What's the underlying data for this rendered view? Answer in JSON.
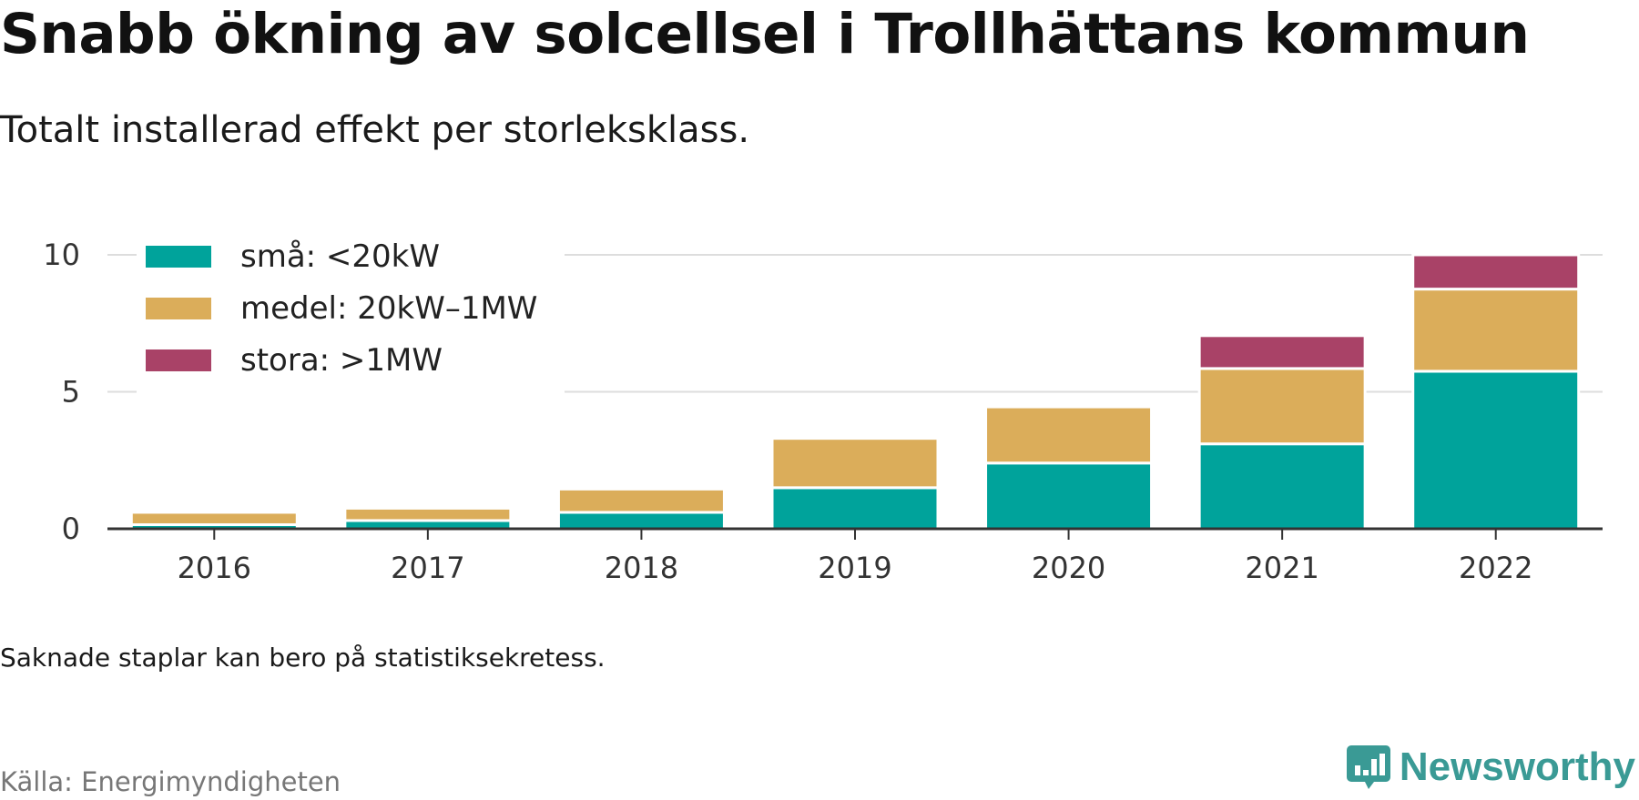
{
  "title": "Snabb ökning av solcellsel i Trollhättans kommun",
  "subtitle": "Totalt installerad effekt per storleksklass.",
  "note": "Saknade staplar kan bero på statistiksekretess.",
  "source": "Källa: Energimyndigheten",
  "brand": {
    "name": "Newsworthy",
    "logo_icon": "bar-chart-speech-bubble-icon",
    "color": "#3a9a95"
  },
  "chart_data": {
    "type": "bar",
    "stacked": true,
    "categories": [
      "2016",
      "2017",
      "2018",
      "2019",
      "2020",
      "2021",
      "2022"
    ],
    "series": [
      {
        "name": "små: <20kW",
        "color": "#00a39b",
        "values": [
          0.15,
          0.3,
          0.6,
          1.5,
          2.4,
          3.1,
          5.75
        ]
      },
      {
        "name": "medel: 20kW–1MW",
        "color": "#dbad5a",
        "values": [
          0.45,
          0.45,
          0.85,
          1.8,
          2.05,
          2.75,
          3.0
        ]
      },
      {
        "name": "stora: >1MW",
        "color": "#a94267",
        "values": [
          0,
          0,
          0,
          0,
          0,
          1.2,
          1.25
        ]
      }
    ],
    "ylim": [
      0,
      10.5
    ],
    "yticks": [
      0,
      5,
      10
    ],
    "ytick_labels": [
      "0",
      "5",
      "10"
    ],
    "grid": true,
    "legend": "top-left"
  }
}
